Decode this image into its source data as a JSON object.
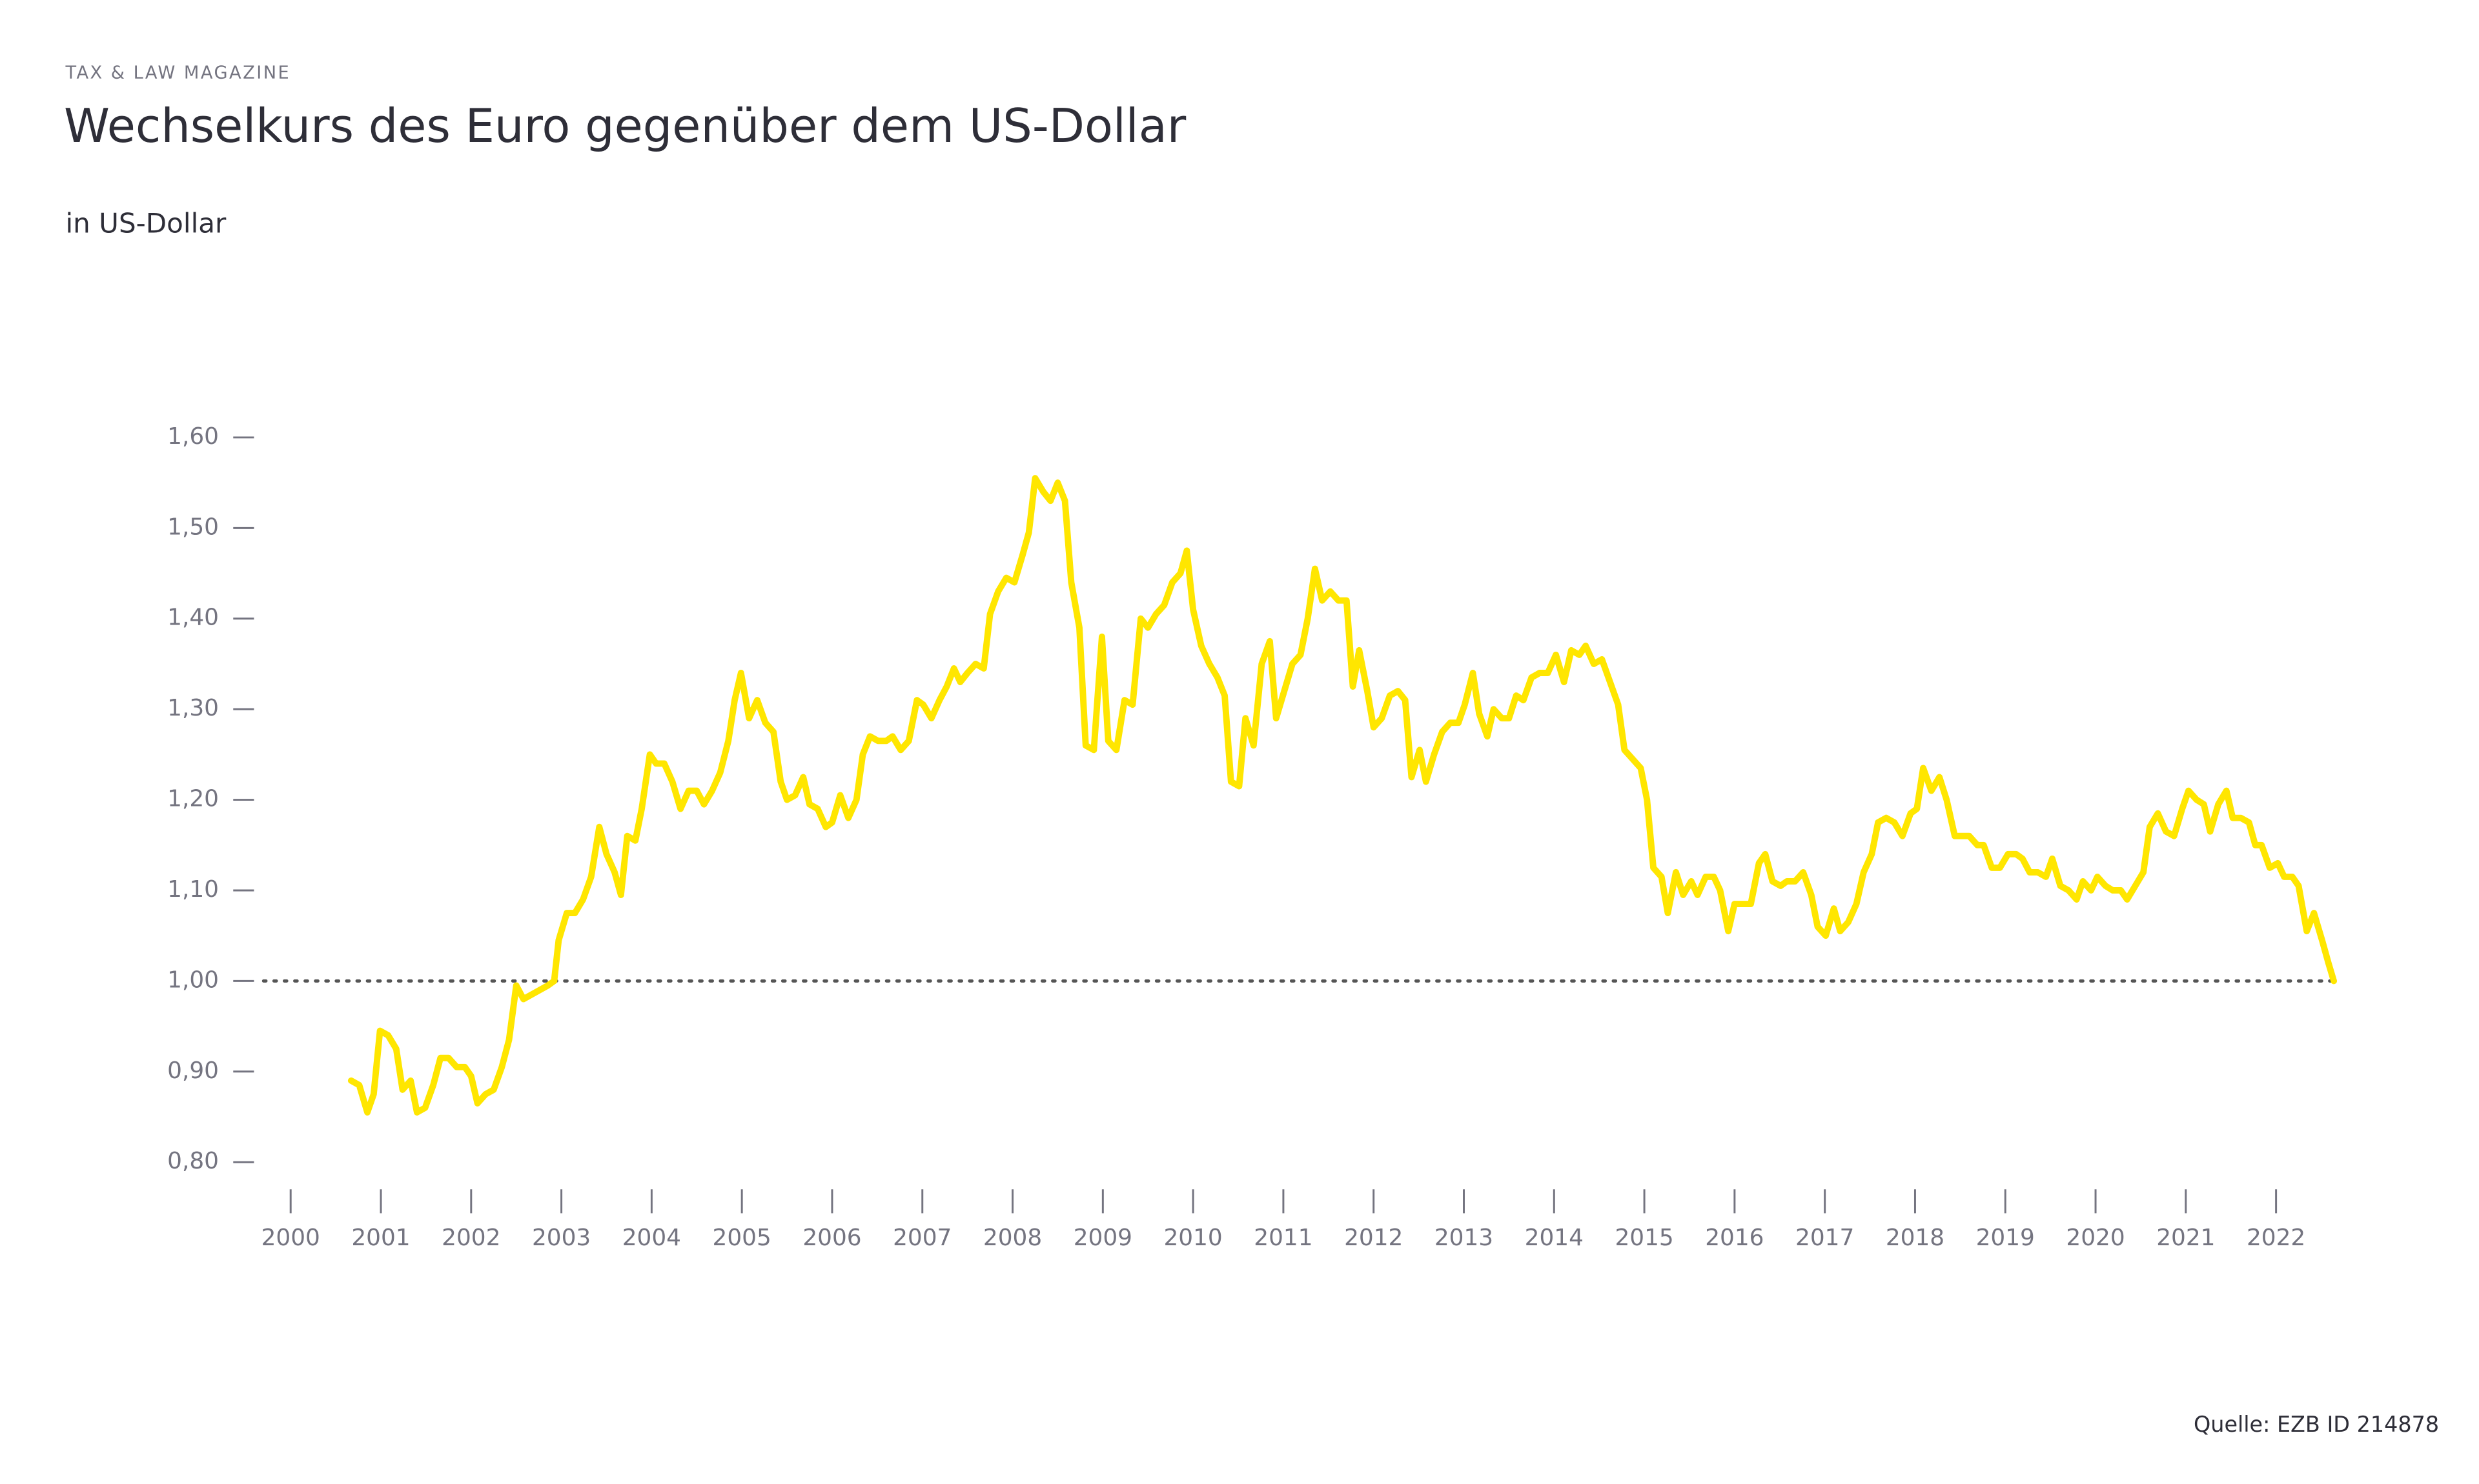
{
  "chart_data": {
    "type": "line",
    "kicker": "TAX & LAW MAGAZINE",
    "title": "Wechselkurs des Euro gegenüber dem US-Dollar",
    "subtitle": "in US-Dollar",
    "source": "Quelle: EZB ID 214878",
    "color": "#ffe600",
    "reference_line": {
      "value": 1.0,
      "style": "dotted"
    },
    "xlim": [
      1999.7,
      2022.7
    ],
    "xticks": [
      2000,
      2001,
      2002,
      2003,
      2004,
      2005,
      2006,
      2007,
      2008,
      2009,
      2010,
      2011,
      2012,
      2013,
      2014,
      2015,
      2016,
      2017,
      2018,
      2019,
      2020,
      2021,
      2022
    ],
    "ylim": [
      0.8,
      1.6
    ],
    "yticks": [
      {
        "value": 0.8,
        "label": "0,80"
      },
      {
        "value": 0.9,
        "label": "0,90"
      },
      {
        "value": 1.0,
        "label": "1,00"
      },
      {
        "value": 1.1,
        "label": "1,10"
      },
      {
        "value": 1.2,
        "label": "1,20"
      },
      {
        "value": 1.3,
        "label": "1,30"
      },
      {
        "value": 1.4,
        "label": "1,40"
      },
      {
        "value": 1.5,
        "label": "1,50"
      },
      {
        "value": 1.6,
        "label": "1,60"
      }
    ],
    "x": [
      2000.67,
      2000.76,
      2000.85,
      2000.92,
      2000.99,
      2001.08,
      2001.17,
      2001.24,
      2001.33,
      2001.4,
      2001.49,
      2001.58,
      2001.66,
      2001.75,
      2001.84,
      2001.93,
      2002.0,
      2002.07,
      2002.16,
      2002.25,
      2002.34,
      2002.42,
      2002.5,
      2002.58,
      2002.67,
      2002.76,
      2002.85,
      2002.92,
      2002.97,
      2003.06,
      2003.15,
      2003.24,
      2003.33,
      2003.42,
      2003.5,
      2003.59,
      2003.66,
      2003.73,
      2003.82,
      2003.89,
      2003.98,
      2004.05,
      2004.14,
      2004.23,
      2004.32,
      2004.41,
      2004.5,
      2004.58,
      2004.67,
      2004.76,
      2004.85,
      2004.92,
      2004.99,
      2005.08,
      2005.17,
      2005.26,
      2005.35,
      2005.43,
      2005.5,
      2005.59,
      2005.68,
      2005.75,
      2005.84,
      2005.93,
      2006.0,
      2006.09,
      2006.18,
      2006.27,
      2006.34,
      2006.42,
      2006.51,
      2006.6,
      2006.67,
      2006.76,
      2006.85,
      2006.94,
      2007.01,
      2007.1,
      2007.19,
      2007.27,
      2007.35,
      2007.42,
      2007.5,
      2007.59,
      2007.68,
      2007.75,
      2007.84,
      2007.93,
      2008.02,
      2008.11,
      2008.18,
      2008.25,
      2008.34,
      2008.42,
      2008.5,
      2008.58,
      2008.65,
      2008.74,
      2008.81,
      2008.9,
      2008.99,
      2009.06,
      2009.15,
      2009.24,
      2009.33,
      2009.42,
      2009.5,
      2009.59,
      2009.68,
      2009.77,
      2009.86,
      2009.93,
      2010.0,
      2010.09,
      2010.18,
      2010.27,
      2010.35,
      2010.42,
      2010.51,
      2010.58,
      2010.67,
      2010.76,
      2010.85,
      2010.92,
      2011.01,
      2011.1,
      2011.19,
      2011.27,
      2011.35,
      2011.43,
      2011.52,
      2011.61,
      2011.7,
      2011.77,
      2011.84,
      2011.93,
      2012.0,
      2012.09,
      2012.18,
      2012.27,
      2012.35,
      2012.42,
      2012.51,
      2012.58,
      2012.67,
      2012.76,
      2012.85,
      2012.94,
      2013.01,
      2013.1,
      2013.17,
      2013.26,
      2013.33,
      2013.42,
      2013.5,
      2013.58,
      2013.66,
      2013.75,
      2013.84,
      2013.93,
      2014.02,
      2014.11,
      2014.19,
      2014.28,
      2014.35,
      2014.44,
      2014.53,
      2014.62,
      2014.71,
      2014.78,
      2014.87,
      2014.96,
      2015.03,
      2015.1,
      2015.19,
      2015.26,
      2015.35,
      2015.43,
      2015.52,
      2015.59,
      2015.68,
      2015.77,
      2015.84,
      2015.93,
      2016.0,
      2016.09,
      2016.18,
      2016.27,
      2016.34,
      2016.42,
      2016.51,
      2016.58,
      2016.67,
      2016.76,
      2016.85,
      2016.92,
      2017.01,
      2017.1,
      2017.17,
      2017.26,
      2017.35,
      2017.43,
      2017.52,
      2017.59,
      2017.68,
      2017.77,
      2017.86,
      2017.95,
      2018.02,
      2018.09,
      2018.18,
      2018.27,
      2018.35,
      2018.44,
      2018.51,
      2018.6,
      2018.69,
      2018.76,
      2018.85,
      2018.94,
      2019.03,
      2019.12,
      2019.19,
      2019.27,
      2019.36,
      2019.45,
      2019.52,
      2019.61,
      2019.7,
      2019.79,
      2019.86,
      2019.95,
      2020.02,
      2020.11,
      2020.19,
      2020.28,
      2020.35,
      2020.44,
      2020.53,
      2020.6,
      2020.69,
      2020.78,
      2020.87,
      2020.96,
      2021.03,
      2021.12,
      2021.2,
      2021.27,
      2021.36,
      2021.45,
      2021.52,
      2021.61,
      2021.7,
      2021.77,
      2021.84,
      2021.93,
      2022.02,
      2022.09,
      2022.18,
      2022.25,
      2022.34,
      2022.42,
      2022.51,
      2022.58,
      2022.64
    ],
    "values": [
      0.89,
      0.885,
      0.855,
      0.875,
      0.945,
      0.94,
      0.925,
      0.88,
      0.89,
      0.855,
      0.86,
      0.885,
      0.915,
      0.915,
      0.905,
      0.905,
      0.895,
      0.865,
      0.875,
      0.88,
      0.905,
      0.935,
      0.995,
      0.98,
      0.985,
      0.99,
      0.995,
      1.0,
      1.045,
      1.075,
      1.075,
      1.09,
      1.115,
      1.17,
      1.14,
      1.12,
      1.095,
      1.16,
      1.155,
      1.19,
      1.25,
      1.24,
      1.24,
      1.22,
      1.19,
      1.21,
      1.21,
      1.195,
      1.21,
      1.23,
      1.265,
      1.31,
      1.34,
      1.29,
      1.31,
      1.285,
      1.275,
      1.22,
      1.2,
      1.205,
      1.225,
      1.195,
      1.19,
      1.17,
      1.175,
      1.205,
      1.18,
      1.2,
      1.25,
      1.27,
      1.265,
      1.265,
      1.27,
      1.255,
      1.265,
      1.31,
      1.305,
      1.29,
      1.31,
      1.325,
      1.345,
      1.33,
      1.34,
      1.35,
      1.345,
      1.405,
      1.43,
      1.445,
      1.44,
      1.47,
      1.495,
      1.555,
      1.54,
      1.53,
      1.55,
      1.53,
      1.44,
      1.39,
      1.26,
      1.255,
      1.38,
      1.265,
      1.255,
      1.31,
      1.305,
      1.4,
      1.39,
      1.405,
      1.415,
      1.44,
      1.45,
      1.475,
      1.41,
      1.37,
      1.35,
      1.335,
      1.315,
      1.22,
      1.215,
      1.29,
      1.26,
      1.35,
      1.375,
      1.29,
      1.32,
      1.35,
      1.36,
      1.4,
      1.455,
      1.42,
      1.43,
      1.42,
      1.42,
      1.325,
      1.365,
      1.32,
      1.28,
      1.29,
      1.315,
      1.32,
      1.31,
      1.225,
      1.255,
      1.22,
      1.25,
      1.275,
      1.285,
      1.285,
      1.305,
      1.34,
      1.295,
      1.27,
      1.3,
      1.29,
      1.29,
      1.315,
      1.31,
      1.335,
      1.34,
      1.34,
      1.36,
      1.33,
      1.365,
      1.36,
      1.37,
      1.35,
      1.355,
      1.33,
      1.305,
      1.255,
      1.245,
      1.235,
      1.2,
      1.125,
      1.115,
      1.075,
      1.12,
      1.095,
      1.11,
      1.095,
      1.115,
      1.115,
      1.1,
      1.055,
      1.085,
      1.085,
      1.085,
      1.13,
      1.14,
      1.11,
      1.105,
      1.11,
      1.11,
      1.12,
      1.095,
      1.06,
      1.05,
      1.08,
      1.055,
      1.065,
      1.085,
      1.12,
      1.14,
      1.175,
      1.18,
      1.175,
      1.16,
      1.185,
      1.19,
      1.235,
      1.21,
      1.225,
      1.2,
      1.16,
      1.16,
      1.16,
      1.15,
      1.15,
      1.125,
      1.125,
      1.14,
      1.14,
      1.135,
      1.12,
      1.12,
      1.115,
      1.135,
      1.105,
      1.1,
      1.09,
      1.11,
      1.1,
      1.115,
      1.105,
      1.1,
      1.1,
      1.09,
      1.105,
      1.12,
      1.17,
      1.185,
      1.165,
      1.16,
      1.19,
      1.21,
      1.2,
      1.195,
      1.165,
      1.195,
      1.21,
      1.18,
      1.18,
      1.175,
      1.15,
      1.15,
      1.125,
      1.13,
      1.115,
      1.115,
      1.105,
      1.055,
      1.075,
      1.045,
      1.02,
      1.0
    ]
  }
}
